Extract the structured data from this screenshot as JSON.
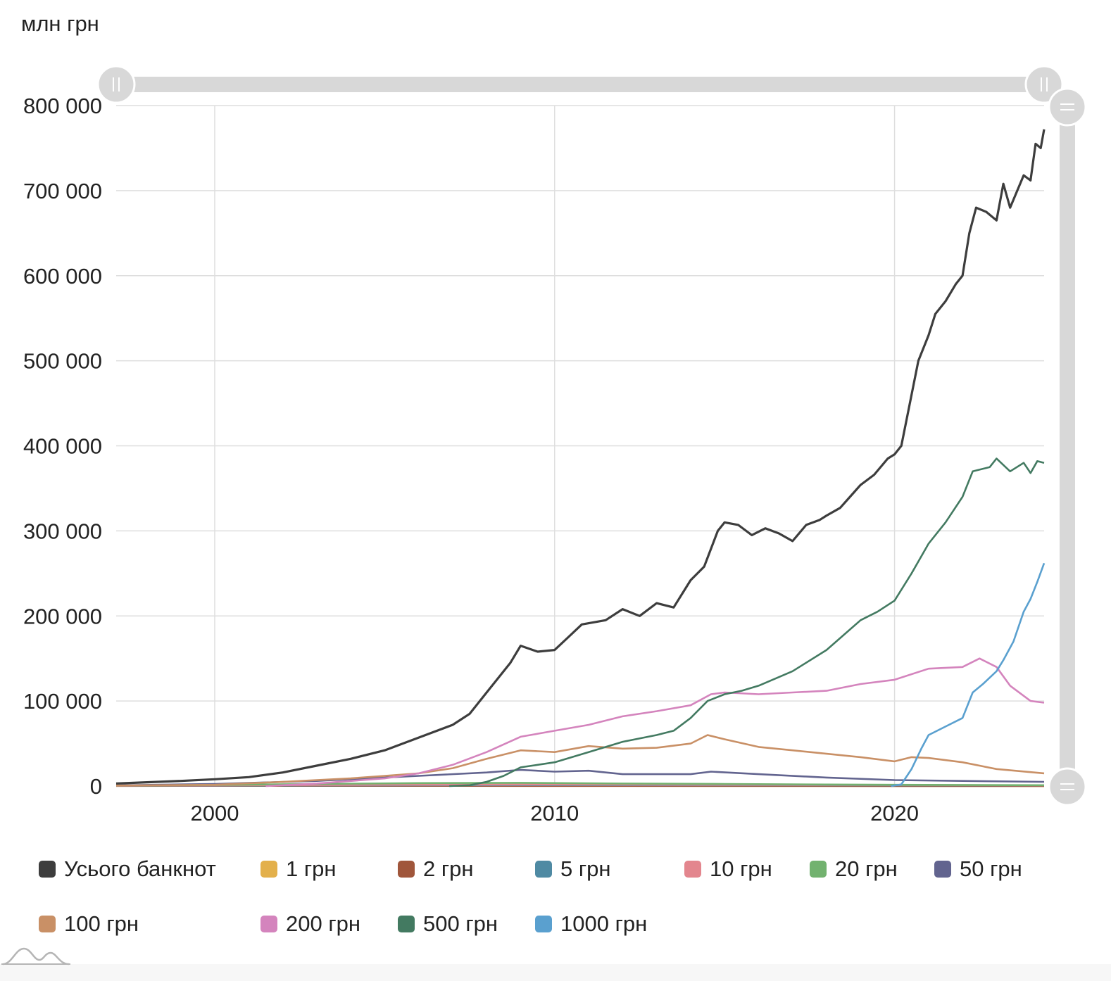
{
  "unit_label": "млн грн",
  "chart_data": {
    "type": "line",
    "title": "",
    "xlabel": "",
    "ylabel": "млн грн",
    "xlim": [
      1997.1,
      2024.4
    ],
    "ylim": [
      0,
      800000
    ],
    "x_ticks": [
      "2000",
      "2010",
      "2020"
    ],
    "y_ticks": [
      "0",
      "100 000",
      "200 000",
      "300 000",
      "400 000",
      "500 000",
      "600 000",
      "700 000",
      "800 000"
    ],
    "grid": true,
    "legend_position": "bottom",
    "series": [
      {
        "name": "Усього банкнот",
        "color": "#3d3d3d",
        "points": [
          [
            1997.1,
            3000
          ],
          [
            1998,
            4500
          ],
          [
            1999,
            6000
          ],
          [
            2000,
            8000
          ],
          [
            2001,
            10500
          ],
          [
            2002,
            16000
          ],
          [
            2003,
            24000
          ],
          [
            2004,
            32000
          ],
          [
            2005,
            42000
          ],
          [
            2006,
            57000
          ],
          [
            2007,
            72000
          ],
          [
            2007.5,
            85000
          ],
          [
            2008,
            110000
          ],
          [
            2008.7,
            145000
          ],
          [
            2009,
            165000
          ],
          [
            2009.5,
            158000
          ],
          [
            2010,
            160000
          ],
          [
            2010.4,
            175000
          ],
          [
            2010.8,
            190000
          ],
          [
            2011.5,
            195000
          ],
          [
            2012,
            208000
          ],
          [
            2012.5,
            200000
          ],
          [
            2013,
            215000
          ],
          [
            2013.5,
            210000
          ],
          [
            2014,
            242000
          ],
          [
            2014.4,
            258000
          ],
          [
            2014.8,
            300000
          ],
          [
            2015,
            310000
          ],
          [
            2015.4,
            307000
          ],
          [
            2015.8,
            295000
          ],
          [
            2016.2,
            303000
          ],
          [
            2016.6,
            297000
          ],
          [
            2017,
            288000
          ],
          [
            2017.4,
            307000
          ],
          [
            2017.8,
            313000
          ],
          [
            2018,
            318000
          ],
          [
            2018.4,
            327000
          ],
          [
            2018.8,
            345000
          ],
          [
            2019,
            354000
          ],
          [
            2019.4,
            366000
          ],
          [
            2019.8,
            385000
          ],
          [
            2020,
            390000
          ],
          [
            2020.2,
            400000
          ],
          [
            2020.4,
            440000
          ],
          [
            2020.7,
            500000
          ],
          [
            2021,
            530000
          ],
          [
            2021.2,
            555000
          ],
          [
            2021.5,
            570000
          ],
          [
            2021.8,
            590000
          ],
          [
            2022,
            600000
          ],
          [
            2022.2,
            650000
          ],
          [
            2022.4,
            680000
          ],
          [
            2022.7,
            675000
          ],
          [
            2023,
            665000
          ],
          [
            2023.2,
            708000
          ],
          [
            2023.4,
            680000
          ],
          [
            2023.8,
            718000
          ],
          [
            2024,
            712000
          ],
          [
            2024.15,
            755000
          ],
          [
            2024.3,
            750000
          ],
          [
            2024.4,
            772000
          ]
        ]
      },
      {
        "name": "1 грн",
        "color": "#e3b04b",
        "points": [
          [
            1997.1,
            300
          ],
          [
            2000,
            350
          ],
          [
            2005,
            300
          ],
          [
            2010,
            250
          ],
          [
            2015,
            200
          ],
          [
            2020,
            150
          ],
          [
            2024.4,
            120
          ]
        ]
      },
      {
        "name": "2 грн",
        "color": "#a0563b",
        "points": [
          [
            1997.1,
            200
          ],
          [
            2000,
            250
          ],
          [
            2005,
            220
          ],
          [
            2010,
            200
          ],
          [
            2015,
            150
          ],
          [
            2020,
            120
          ],
          [
            2024.4,
            100
          ]
        ]
      },
      {
        "name": "5 грн",
        "color": "#4f8aa3",
        "points": [
          [
            1997.1,
            400
          ],
          [
            2000,
            600
          ],
          [
            2005,
            900
          ],
          [
            2010,
            1100
          ],
          [
            2015,
            1000
          ],
          [
            2020,
            900
          ],
          [
            2024.4,
            800
          ]
        ]
      },
      {
        "name": "10 грн",
        "color": "#e3868e",
        "points": [
          [
            1997.1,
            500
          ],
          [
            2000,
            900
          ],
          [
            2005,
            1500
          ],
          [
            2010,
            1800
          ],
          [
            2015,
            1500
          ],
          [
            2020,
            1200
          ],
          [
            2024.4,
            900
          ]
        ]
      },
      {
        "name": "20 грн",
        "color": "#72b26f",
        "points": [
          [
            1997.1,
            600
          ],
          [
            2000,
            1200
          ],
          [
            2003,
            2500
          ],
          [
            2006,
            3500
          ],
          [
            2009,
            3800
          ],
          [
            2012,
            3000
          ],
          [
            2015,
            2500
          ],
          [
            2018,
            1800
          ],
          [
            2020,
            1500
          ],
          [
            2024.4,
            1000
          ]
        ]
      },
      {
        "name": "50 грн",
        "color": "#62648f",
        "points": [
          [
            1997.1,
            800
          ],
          [
            2000,
            2500
          ],
          [
            2003,
            6000
          ],
          [
            2006,
            12000
          ],
          [
            2008,
            16000
          ],
          [
            2009,
            19000
          ],
          [
            2010,
            17000
          ],
          [
            2011,
            18000
          ],
          [
            2012,
            14000
          ],
          [
            2014,
            14000
          ],
          [
            2014.6,
            17000
          ],
          [
            2016,
            14000
          ],
          [
            2018,
            10000
          ],
          [
            2020,
            7000
          ],
          [
            2022,
            6000
          ],
          [
            2024.4,
            5000
          ]
        ]
      },
      {
        "name": "100 грн",
        "color": "#c99066",
        "points": [
          [
            1997.1,
            600
          ],
          [
            2000,
            1500
          ],
          [
            2002,
            5000
          ],
          [
            2004,
            9000
          ],
          [
            2005,
            12000
          ],
          [
            2006,
            15000
          ],
          [
            2007,
            21000
          ],
          [
            2008,
            32000
          ],
          [
            2009,
            42000
          ],
          [
            2010,
            40000
          ],
          [
            2011,
            47000
          ],
          [
            2012,
            44000
          ],
          [
            2013,
            45000
          ],
          [
            2014,
            50000
          ],
          [
            2014.5,
            60000
          ],
          [
            2015,
            55000
          ],
          [
            2016,
            46000
          ],
          [
            2017,
            42000
          ],
          [
            2018,
            38000
          ],
          [
            2019,
            34000
          ],
          [
            2020,
            29000
          ],
          [
            2020.5,
            34000
          ],
          [
            2021,
            33000
          ],
          [
            2022,
            28000
          ],
          [
            2023,
            20000
          ],
          [
            2024.4,
            15000
          ]
        ]
      },
      {
        "name": "200 грн",
        "color": "#d484bd",
        "points": [
          [
            2001.5,
            0
          ],
          [
            2003,
            3000
          ],
          [
            2005,
            9000
          ],
          [
            2006,
            15000
          ],
          [
            2007,
            25000
          ],
          [
            2008,
            40000
          ],
          [
            2009,
            58000
          ],
          [
            2010,
            65000
          ],
          [
            2011,
            72000
          ],
          [
            2012,
            82000
          ],
          [
            2013,
            88000
          ],
          [
            2014,
            95000
          ],
          [
            2014.6,
            108000
          ],
          [
            2015,
            110000
          ],
          [
            2016,
            108000
          ],
          [
            2017,
            110000
          ],
          [
            2018,
            112000
          ],
          [
            2019,
            120000
          ],
          [
            2020,
            125000
          ],
          [
            2021,
            138000
          ],
          [
            2022,
            140000
          ],
          [
            2022.5,
            150000
          ],
          [
            2023,
            140000
          ],
          [
            2023.4,
            118000
          ],
          [
            2024,
            100000
          ],
          [
            2024.4,
            98000
          ]
        ]
      },
      {
        "name": "500 грн",
        "color": "#437a61",
        "points": [
          [
            2006.9,
            0
          ],
          [
            2007.5,
            1000
          ],
          [
            2008,
            5000
          ],
          [
            2008.5,
            12000
          ],
          [
            2009,
            22000
          ],
          [
            2010,
            28000
          ],
          [
            2011,
            40000
          ],
          [
            2012,
            52000
          ],
          [
            2013,
            60000
          ],
          [
            2013.5,
            65000
          ],
          [
            2014,
            80000
          ],
          [
            2014.5,
            100000
          ],
          [
            2015,
            108000
          ],
          [
            2015.5,
            112000
          ],
          [
            2016,
            118000
          ],
          [
            2017,
            135000
          ],
          [
            2018,
            160000
          ],
          [
            2019,
            195000
          ],
          [
            2019.5,
            205000
          ],
          [
            2020,
            218000
          ],
          [
            2020.5,
            250000
          ],
          [
            2021,
            285000
          ],
          [
            2021.5,
            310000
          ],
          [
            2022,
            340000
          ],
          [
            2022.3,
            370000
          ],
          [
            2022.8,
            375000
          ],
          [
            2023,
            385000
          ],
          [
            2023.4,
            370000
          ],
          [
            2023.8,
            380000
          ],
          [
            2024,
            368000
          ],
          [
            2024.2,
            382000
          ],
          [
            2024.4,
            380000
          ]
        ]
      },
      {
        "name": "1000 грн",
        "color": "#5aa0cf",
        "points": [
          [
            2019.9,
            0
          ],
          [
            2020.2,
            2000
          ],
          [
            2020.5,
            20000
          ],
          [
            2020.8,
            45000
          ],
          [
            2021,
            60000
          ],
          [
            2021.5,
            70000
          ],
          [
            2022,
            80000
          ],
          [
            2022.3,
            110000
          ],
          [
            2022.6,
            120000
          ],
          [
            2023,
            135000
          ],
          [
            2023.2,
            148000
          ],
          [
            2023.5,
            170000
          ],
          [
            2023.8,
            205000
          ],
          [
            2024,
            220000
          ],
          [
            2024.2,
            240000
          ],
          [
            2024.4,
            262000
          ]
        ]
      }
    ]
  }
}
